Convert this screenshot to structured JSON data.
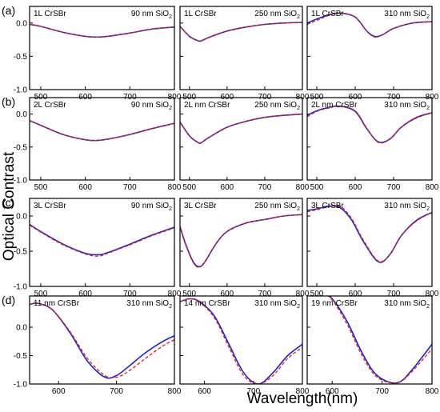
{
  "figure": {
    "ylabel": "Optical Contrast",
    "xlabel": "Wavelength(nm)",
    "colors": {
      "curve_solid": "#2222cc",
      "curve_dashed": "#e02020",
      "axis": "#000000"
    }
  },
  "chart_data": [
    {
      "type": "line",
      "row_label": "(a)",
      "sample": "1L CrSBr",
      "substrate_pre": "90 nm SiO",
      "substrate_sub": "2",
      "xlim": [
        475,
        800
      ],
      "ylim": [
        -1.0,
        0.25
      ],
      "xticks": [
        500,
        600,
        700,
        800
      ],
      "yticks": [
        -1.0,
        -0.5,
        0.0
      ],
      "series": [
        {
          "style": "solid",
          "x": [
            475,
            500,
            550,
            600,
            625,
            650,
            700,
            750,
            800
          ],
          "y": [
            -0.02,
            -0.05,
            -0.14,
            -0.2,
            -0.21,
            -0.2,
            -0.15,
            -0.09,
            -0.06
          ]
        },
        {
          "style": "dashed",
          "x": [
            475,
            500,
            550,
            600,
            625,
            650,
            700,
            750,
            800
          ],
          "y": [
            -0.02,
            -0.05,
            -0.14,
            -0.2,
            -0.21,
            -0.2,
            -0.15,
            -0.09,
            -0.06
          ]
        }
      ]
    },
    {
      "type": "line",
      "row_label": "",
      "sample": "1L CrSBr",
      "substrate_pre": "250 nm SiO",
      "substrate_sub": "2",
      "xlim": [
        475,
        800
      ],
      "ylim": [
        -1.0,
        0.25
      ],
      "xticks": [
        500,
        600,
        700,
        800
      ],
      "yticks": [
        -1.0,
        -0.5,
        0.0
      ],
      "series": [
        {
          "style": "solid",
          "x": [
            475,
            500,
            520,
            530,
            550,
            600,
            650,
            700,
            750,
            800
          ],
          "y": [
            -0.05,
            -0.2,
            -0.26,
            -0.27,
            -0.22,
            -0.12,
            -0.06,
            -0.02,
            0.0,
            0.01
          ]
        },
        {
          "style": "dashed",
          "x": [
            475,
            500,
            520,
            530,
            550,
            600,
            650,
            700,
            750,
            800
          ],
          "y": [
            -0.05,
            -0.2,
            -0.26,
            -0.27,
            -0.22,
            -0.12,
            -0.06,
            -0.02,
            0.0,
            0.01
          ]
        }
      ]
    },
    {
      "type": "line",
      "row_label": "",
      "sample": "1L CrSBr",
      "substrate_pre": "310 nm SiO",
      "substrate_sub": "2",
      "xlim": [
        475,
        800
      ],
      "ylim": [
        -1.0,
        0.25
      ],
      "xticks": [
        500,
        600,
        700,
        800
      ],
      "yticks": [
        -1.0,
        -0.5,
        0.0
      ],
      "series": [
        {
          "style": "solid",
          "x": [
            475,
            500,
            530,
            560,
            600,
            630,
            650,
            670,
            700,
            750,
            800
          ],
          "y": [
            0.0,
            0.06,
            0.12,
            0.15,
            0.09,
            -0.12,
            -0.2,
            -0.18,
            -0.08,
            0.0,
            0.02
          ]
        },
        {
          "style": "dashed",
          "x": [
            475,
            500,
            530,
            560,
            600,
            630,
            650,
            670,
            700,
            750,
            800
          ],
          "y": [
            -0.02,
            0.04,
            0.11,
            0.15,
            0.09,
            -0.12,
            -0.21,
            -0.18,
            -0.08,
            0.0,
            0.02
          ]
        }
      ]
    },
    {
      "type": "line",
      "row_label": "(b)",
      "sample": "2L CrSBr",
      "substrate_pre": "90 nm SiO",
      "substrate_sub": "2",
      "xlim": [
        475,
        800
      ],
      "ylim": [
        -1.0,
        0.25
      ],
      "xticks": [
        500,
        600,
        700,
        800
      ],
      "yticks": [
        -1.0,
        -0.5,
        0.0
      ],
      "series": [
        {
          "style": "solid",
          "x": [
            475,
            500,
            550,
            600,
            625,
            650,
            700,
            750,
            800
          ],
          "y": [
            -0.1,
            -0.17,
            -0.31,
            -0.39,
            -0.4,
            -0.38,
            -0.31,
            -0.22,
            -0.14
          ]
        },
        {
          "style": "dashed",
          "x": [
            475,
            500,
            550,
            600,
            625,
            650,
            700,
            750,
            800
          ],
          "y": [
            -0.1,
            -0.17,
            -0.31,
            -0.39,
            -0.4,
            -0.38,
            -0.31,
            -0.22,
            -0.14
          ]
        }
      ]
    },
    {
      "type": "line",
      "row_label": "",
      "sample": "2L nm CrSBr",
      "substrate_pre": "250 nm SiO",
      "substrate_sub": "2",
      "xlim": [
        475,
        800
      ],
      "ylim": [
        -1.0,
        0.25
      ],
      "xticks": [
        500,
        600,
        700,
        800
      ],
      "yticks": [
        -1.0,
        -0.5,
        0.0
      ],
      "series": [
        {
          "style": "solid",
          "x": [
            475,
            500,
            520,
            530,
            550,
            600,
            650,
            700,
            750,
            800
          ],
          "y": [
            -0.12,
            -0.33,
            -0.42,
            -0.44,
            -0.36,
            -0.2,
            -0.11,
            -0.05,
            -0.02,
            0.0
          ]
        },
        {
          "style": "dashed",
          "x": [
            475,
            500,
            520,
            530,
            550,
            600,
            650,
            700,
            750,
            800
          ],
          "y": [
            -0.12,
            -0.33,
            -0.42,
            -0.44,
            -0.36,
            -0.2,
            -0.11,
            -0.05,
            -0.02,
            0.0
          ]
        }
      ]
    },
    {
      "type": "line",
      "row_label": "",
      "sample": "2L nm CrSBr",
      "substrate_pre": "310 nm SiO",
      "substrate_sub": "2",
      "xlim": [
        475,
        800
      ],
      "ylim": [
        -1.0,
        0.25
      ],
      "xticks": [
        500,
        600,
        700,
        800
      ],
      "yticks": [
        -1.0,
        -0.5,
        0.0
      ],
      "series": [
        {
          "style": "solid",
          "x": [
            475,
            500,
            530,
            560,
            600,
            630,
            660,
            690,
            720,
            760,
            800
          ],
          "y": [
            -0.02,
            0.05,
            0.1,
            0.12,
            0.04,
            -0.22,
            -0.42,
            -0.38,
            -0.2,
            -0.05,
            0.02
          ]
        },
        {
          "style": "dashed",
          "x": [
            475,
            500,
            530,
            560,
            600,
            630,
            660,
            690,
            720,
            760,
            800
          ],
          "y": [
            -0.04,
            0.04,
            0.09,
            0.12,
            0.05,
            -0.21,
            -0.43,
            -0.38,
            -0.2,
            -0.06,
            0.02
          ]
        }
      ]
    },
    {
      "type": "line",
      "row_label": "(c)",
      "sample": "3L CrSBr",
      "substrate_pre": "90 nm SiO",
      "substrate_sub": "2",
      "xlim": [
        475,
        800
      ],
      "ylim": [
        -1.0,
        0.25
      ],
      "xticks": [
        500,
        600,
        700,
        800
      ],
      "yticks": [
        -1.0,
        -0.5,
        0.0
      ],
      "series": [
        {
          "style": "solid",
          "x": [
            475,
            500,
            550,
            600,
            630,
            650,
            700,
            750,
            800
          ],
          "y": [
            -0.12,
            -0.22,
            -0.4,
            -0.53,
            -0.55,
            -0.52,
            -0.4,
            -0.27,
            -0.16
          ]
        },
        {
          "style": "dashed",
          "x": [
            475,
            500,
            550,
            600,
            630,
            650,
            700,
            750,
            800
          ],
          "y": [
            -0.13,
            -0.23,
            -0.41,
            -0.54,
            -0.57,
            -0.53,
            -0.41,
            -0.28,
            -0.17
          ]
        }
      ]
    },
    {
      "type": "line",
      "row_label": "",
      "sample": "3L CrSBr",
      "substrate_pre": "250 nm SiO",
      "substrate_sub": "2",
      "xlim": [
        475,
        800
      ],
      "ylim": [
        -1.0,
        0.25
      ],
      "xticks": [
        500,
        600,
        700,
        800
      ],
      "yticks": [
        -1.0,
        -0.5,
        0.0
      ],
      "series": [
        {
          "style": "solid",
          "x": [
            475,
            490,
            510,
            525,
            540,
            570,
            600,
            650,
            700,
            750,
            800
          ],
          "y": [
            -0.15,
            -0.4,
            -0.65,
            -0.72,
            -0.66,
            -0.4,
            -0.22,
            -0.1,
            -0.05,
            0.0,
            0.02
          ]
        },
        {
          "style": "dashed",
          "x": [
            475,
            490,
            510,
            525,
            540,
            570,
            600,
            650,
            700,
            750,
            800
          ],
          "y": [
            -0.16,
            -0.41,
            -0.66,
            -0.73,
            -0.66,
            -0.4,
            -0.22,
            -0.1,
            -0.05,
            0.0,
            0.02
          ]
        }
      ]
    },
    {
      "type": "line",
      "row_label": "",
      "sample": "3L CrSBr",
      "substrate_pre": "310 nm SiO",
      "substrate_sub": "2",
      "xlim": [
        475,
        800
      ],
      "ylim": [
        -1.0,
        0.25
      ],
      "xticks": [
        500,
        600,
        700,
        800
      ],
      "yticks": [
        -1.0,
        -0.5,
        0.0
      ],
      "series": [
        {
          "style": "solid",
          "x": [
            475,
            500,
            530,
            560,
            590,
            620,
            660,
            690,
            720,
            760,
            800
          ],
          "y": [
            0.08,
            0.1,
            0.14,
            0.12,
            -0.05,
            -0.35,
            -0.65,
            -0.55,
            -0.28,
            -0.06,
            0.05
          ]
        },
        {
          "style": "dashed",
          "x": [
            475,
            500,
            530,
            560,
            590,
            620,
            660,
            690,
            720,
            760,
            800
          ],
          "y": [
            0.06,
            0.09,
            0.13,
            0.14,
            -0.03,
            -0.33,
            -0.64,
            -0.55,
            -0.28,
            -0.07,
            0.05
          ]
        }
      ]
    },
    {
      "type": "line",
      "row_label": "(d)",
      "sample": "11 nm CrSBr",
      "substrate_pre": "310 nm SiO",
      "substrate_sub": "2",
      "xlim": [
        550,
        800
      ],
      "ylim": [
        -1.0,
        0.55
      ],
      "xticks": [
        600,
        700,
        800
      ],
      "yticks": [
        -1.0,
        -0.5,
        0.0
      ],
      "series": [
        {
          "style": "solid",
          "x": [
            550,
            565,
            590,
            620,
            650,
            680,
            700,
            720,
            750,
            780,
            800
          ],
          "y": [
            0.4,
            0.42,
            0.3,
            -0.1,
            -0.6,
            -0.88,
            -0.85,
            -0.7,
            -0.45,
            -0.25,
            -0.15
          ]
        },
        {
          "style": "dashed",
          "x": [
            550,
            565,
            590,
            620,
            650,
            680,
            700,
            720,
            750,
            780,
            800
          ],
          "y": [
            0.4,
            0.42,
            0.3,
            -0.08,
            -0.55,
            -0.85,
            -0.88,
            -0.78,
            -0.55,
            -0.33,
            -0.22
          ]
        }
      ]
    },
    {
      "type": "line",
      "row_label": "",
      "sample": "14 nm CrSBr",
      "substrate_pre": "310 nm SiO",
      "substrate_sub": "2",
      "xlim": [
        550,
        800
      ],
      "ylim": [
        -1.0,
        0.55
      ],
      "xticks": [
        600,
        700,
        800
      ],
      "yticks": [
        -1.0,
        -0.5,
        0.0
      ],
      "series": [
        {
          "style": "solid",
          "x": [
            550,
            570,
            590,
            620,
            650,
            680,
            710,
            740,
            770,
            800
          ],
          "y": [
            0.45,
            0.5,
            0.45,
            0.2,
            -0.3,
            -0.8,
            -1.0,
            -0.8,
            -0.5,
            -0.3
          ]
        },
        {
          "style": "dashed",
          "x": [
            550,
            570,
            590,
            620,
            650,
            680,
            710,
            740,
            770,
            800
          ],
          "y": [
            0.45,
            0.5,
            0.44,
            0.17,
            -0.35,
            -0.85,
            -1.0,
            -0.85,
            -0.55,
            -0.35
          ]
        }
      ]
    },
    {
      "type": "line",
      "row_label": "",
      "sample": "19 nm CrSBr",
      "substrate_pre": "310 nm SiO",
      "substrate_sub": "2",
      "xlim": [
        550,
        800
      ],
      "ylim": [
        -1.0,
        0.55
      ],
      "xticks": [
        600,
        700,
        800
      ],
      "yticks": [
        -1.0,
        -0.5,
        0.0
      ],
      "series": [
        {
          "style": "solid",
          "x": [
            550,
            580,
            600,
            630,
            660,
            690,
            730,
            760,
            800
          ],
          "y": [
            0.58,
            0.6,
            0.5,
            0.1,
            -0.45,
            -0.85,
            -0.98,
            -0.75,
            -0.3
          ]
        },
        {
          "style": "dashed",
          "x": [
            550,
            580,
            600,
            630,
            660,
            690,
            730,
            760,
            800
          ],
          "y": [
            0.58,
            0.6,
            0.48,
            0.05,
            -0.5,
            -0.88,
            -0.98,
            -0.78,
            -0.38
          ]
        }
      ]
    }
  ]
}
